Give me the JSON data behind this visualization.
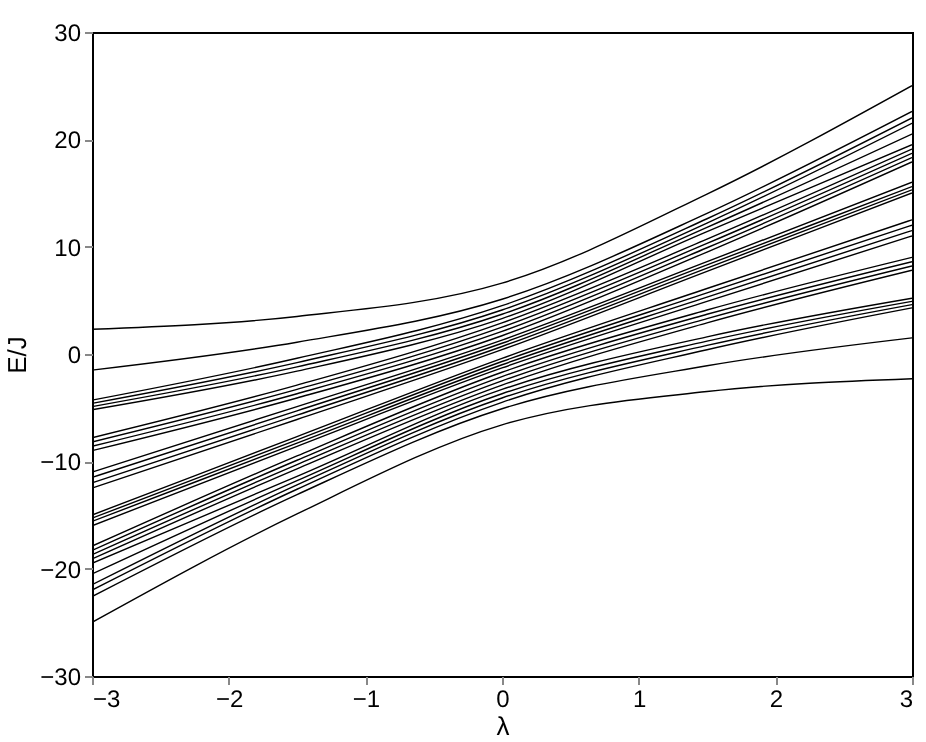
{
  "chart_data": {
    "type": "line",
    "xlabel": "λ",
    "ylabel": "E/J",
    "x": [
      -3,
      -1.5,
      0,
      1.5,
      3
    ],
    "xlim": [
      -3,
      3
    ],
    "xticks": [
      -3,
      -2,
      -1,
      0,
      1,
      2,
      3
    ],
    "ylim": [
      -30,
      30
    ],
    "yticks": [
      -30,
      -20,
      -10,
      0,
      10,
      20,
      30
    ],
    "grid": false,
    "legend": false,
    "line_style": "solid",
    "series": [
      {
        "color": "#000000",
        "values": [
          -25,
          -14.9,
          -6.6,
          -3.5,
          -2.3
        ]
      },
      {
        "color": "#000000",
        "values": [
          -22.6,
          -13.1,
          -5.1,
          -1.1,
          1.5
        ]
      },
      {
        "color": "#000000",
        "values": [
          -22,
          -12.6,
          -4.5,
          0.4,
          4.3
        ]
      },
      {
        "color": "#000000",
        "values": [
          -21.5,
          -12.2,
          -4.1,
          0.8,
          4.6
        ]
      },
      {
        "color": "#000000",
        "values": [
          -20.5,
          -11.8,
          -3.7,
          1.2,
          4.9
        ]
      },
      {
        "color": "#000000",
        "values": [
          -19.5,
          -11.4,
          -3.3,
          1.6,
          5.2
        ]
      },
      {
        "color": "#000000",
        "values": [
          -19.1,
          -10.7,
          -2.9,
          2.9,
          7.8
        ]
      },
      {
        "color": "#000000",
        "values": [
          -18.7,
          -10.3,
          -2.5,
          3.3,
          8.2
        ]
      },
      {
        "color": "#000000",
        "values": [
          -18.3,
          -9.9,
          -2.1,
          3.7,
          8.6
        ]
      },
      {
        "color": "#000000",
        "values": [
          -17.9,
          -9.5,
          -1.7,
          4.1,
          9
        ]
      },
      {
        "color": "#000000",
        "values": [
          -16,
          -8.6,
          -1.3,
          4.9,
          11
        ]
      },
      {
        "color": "#000000",
        "values": [
          -15.6,
          -8.3,
          -1,
          5.3,
          11.5
        ]
      },
      {
        "color": "#000000",
        "values": [
          -15.3,
          -8,
          -0.7,
          5.7,
          12
        ]
      },
      {
        "color": "#000000",
        "values": [
          -15,
          -7.7,
          -0.4,
          6.1,
          12.5
        ]
      },
      {
        "color": "#000000",
        "values": [
          -12.5,
          -6.1,
          0.4,
          7.7,
          15
        ]
      },
      {
        "color": "#000000",
        "values": [
          -12,
          -5.7,
          0.7,
          8,
          15.3
        ]
      },
      {
        "color": "#000000",
        "values": [
          -11.5,
          -5.3,
          1,
          8.3,
          15.6
        ]
      },
      {
        "color": "#000000",
        "values": [
          -11,
          -4.9,
          1.3,
          8.6,
          16
        ]
      },
      {
        "color": "#000000",
        "values": [
          -9,
          -4.1,
          1.7,
          9.5,
          17.9
        ]
      },
      {
        "color": "#000000",
        "values": [
          -8.6,
          -3.7,
          2.1,
          9.9,
          18.3
        ]
      },
      {
        "color": "#000000",
        "values": [
          -8.2,
          -3.3,
          2.5,
          10.3,
          18.7
        ]
      },
      {
        "color": "#000000",
        "values": [
          -7.8,
          -2.9,
          2.9,
          10.7,
          19.1
        ]
      },
      {
        "color": "#000000",
        "values": [
          -5.2,
          -1.6,
          3.3,
          11.4,
          19.5
        ]
      },
      {
        "color": "#000000",
        "values": [
          -4.9,
          -1.2,
          3.7,
          11.8,
          20.5
        ]
      },
      {
        "color": "#000000",
        "values": [
          -4.6,
          -0.8,
          4.1,
          12.2,
          21.5
        ]
      },
      {
        "color": "#000000",
        "values": [
          -4.3,
          -0.4,
          4.5,
          12.6,
          22
        ]
      },
      {
        "color": "#000000",
        "values": [
          -1.5,
          1.1,
          5.1,
          13.1,
          22.6
        ]
      },
      {
        "color": "#000000",
        "values": [
          2.3,
          3.5,
          6.6,
          14.9,
          25
        ]
      }
    ]
  }
}
